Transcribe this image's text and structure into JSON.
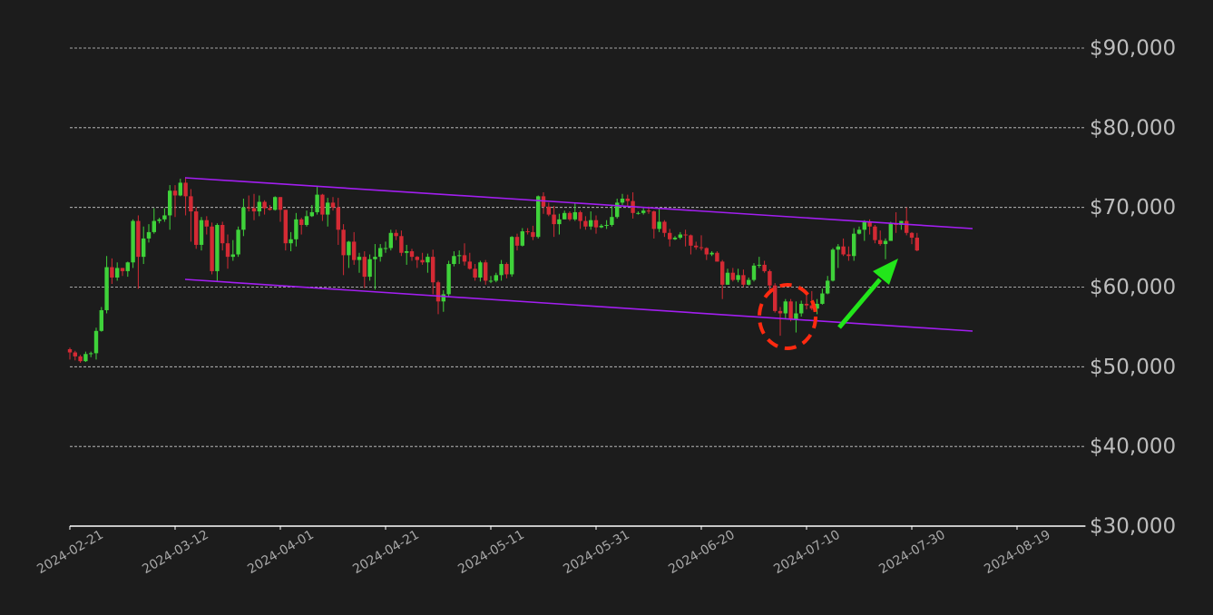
{
  "chart_data": {
    "type": "candlestick",
    "x": [
      "2024-02-21",
      "2024-02-22",
      "2024-02-23",
      "2024-02-24",
      "2024-02-25",
      "2024-02-26",
      "2024-02-27",
      "2024-02-28",
      "2024-02-29",
      "2024-03-01",
      "2024-03-02",
      "2024-03-03",
      "2024-03-04",
      "2024-03-05",
      "2024-03-06",
      "2024-03-07",
      "2024-03-08",
      "2024-03-09",
      "2024-03-10",
      "2024-03-11",
      "2024-03-12",
      "2024-03-13",
      "2024-03-14",
      "2024-03-15",
      "2024-03-16",
      "2024-03-17",
      "2024-03-18",
      "2024-03-19",
      "2024-03-20",
      "2024-03-21",
      "2024-03-22",
      "2024-03-23",
      "2024-03-24",
      "2024-03-25",
      "2024-03-26",
      "2024-03-27",
      "2024-03-28",
      "2024-03-29",
      "2024-03-30",
      "2024-03-31",
      "2024-04-01",
      "2024-04-02",
      "2024-04-03",
      "2024-04-04",
      "2024-04-05",
      "2024-04-06",
      "2024-04-07",
      "2024-04-08",
      "2024-04-09",
      "2024-04-10",
      "2024-04-11",
      "2024-04-12",
      "2024-04-13",
      "2024-04-14",
      "2024-04-15",
      "2024-04-16",
      "2024-04-17",
      "2024-04-18",
      "2024-04-19",
      "2024-04-20",
      "2024-04-21",
      "2024-04-22",
      "2024-04-23",
      "2024-04-24",
      "2024-04-25",
      "2024-04-26",
      "2024-04-27",
      "2024-04-28",
      "2024-04-29",
      "2024-04-30",
      "2024-05-01",
      "2024-05-02",
      "2024-05-03",
      "2024-05-04",
      "2024-05-05",
      "2024-05-06",
      "2024-05-07",
      "2024-05-08",
      "2024-05-09",
      "2024-05-10",
      "2024-05-11",
      "2024-05-12",
      "2024-05-13",
      "2024-05-14",
      "2024-05-15",
      "2024-05-16",
      "2024-05-17",
      "2024-05-18",
      "2024-05-19",
      "2024-05-20",
      "2024-05-21",
      "2024-05-22",
      "2024-05-23",
      "2024-05-24",
      "2024-05-25",
      "2024-05-26",
      "2024-05-27",
      "2024-05-28",
      "2024-05-29",
      "2024-05-30",
      "2024-05-31",
      "2024-06-01",
      "2024-06-02",
      "2024-06-03",
      "2024-06-04",
      "2024-06-05",
      "2024-06-06",
      "2024-06-07",
      "2024-06-08",
      "2024-06-09",
      "2024-06-10",
      "2024-06-11",
      "2024-06-12",
      "2024-06-13",
      "2024-06-14",
      "2024-06-15",
      "2024-06-16",
      "2024-06-17",
      "2024-06-18",
      "2024-06-19",
      "2024-06-20",
      "2024-06-21",
      "2024-06-22",
      "2024-06-23",
      "2024-06-24",
      "2024-06-25",
      "2024-06-26",
      "2024-06-27",
      "2024-06-28",
      "2024-06-29",
      "2024-06-30",
      "2024-07-01",
      "2024-07-02",
      "2024-07-03",
      "2024-07-04",
      "2024-07-05",
      "2024-07-06",
      "2024-07-07",
      "2024-07-08",
      "2024-07-09",
      "2024-07-10",
      "2024-07-11",
      "2024-07-12",
      "2024-07-13",
      "2024-07-14",
      "2024-07-15",
      "2024-07-16",
      "2024-07-17",
      "2024-07-18",
      "2024-07-19",
      "2024-07-20",
      "2024-07-21",
      "2024-07-22",
      "2024-07-23",
      "2024-07-24",
      "2024-07-25",
      "2024-07-26",
      "2024-07-27",
      "2024-07-28",
      "2024-07-29",
      "2024-07-30",
      "2024-07-31"
    ],
    "open": [
      52200,
      51800,
      51300,
      50700,
      51600,
      51700,
      54500,
      57100,
      62500,
      61200,
      62400,
      62000,
      63100,
      68300,
      63800,
      66100,
      66900,
      68300,
      68500,
      69000,
      72100,
      71500,
      73100,
      71400,
      69500,
      65300,
      68400,
      67600,
      62000,
      67800,
      65500,
      63800,
      64100,
      67200,
      70000,
      69900,
      69500,
      70700,
      69900,
      69700,
      71300,
      69700,
      65500,
      66000,
      68500,
      67800,
      68900,
      69400,
      71600,
      69100,
      70600,
      70000,
      67200,
      64000,
      65700,
      63400,
      63800,
      61300,
      63500,
      63800,
      64900,
      64900,
      66800,
      66400,
      64300,
      64500,
      63800,
      63400,
      63100,
      63800,
      60600,
      58200,
      59100,
      62900,
      63900,
      64000,
      63200,
      62300,
      61200,
      63100,
      60800,
      60800,
      61500,
      62900,
      61600,
      66300,
      65200,
      67000,
      66900,
      66300,
      71400,
      70100,
      69100,
      67900,
      68500,
      69300,
      68500,
      69400,
      68300,
      67600,
      68400,
      67500,
      67700,
      67800,
      68800,
      70600,
      71100,
      70800,
      69300,
      69300,
      69600,
      69500,
      67300,
      68200,
      66800,
      66000,
      66200,
      66600,
      66500,
      65200,
      65000,
      64900,
      64100,
      64300,
      63200,
      60300,
      61800,
      60900,
      61500,
      60300,
      60900,
      62700,
      62800,
      62000,
      60200,
      57000,
      56700,
      58200,
      55900,
      56700,
      57900,
      57700,
      57300,
      57900,
      59200,
      60800,
      64700,
      65100,
      64100,
      63900,
      66700,
      67200,
      68200,
      67600,
      65900,
      65400,
      65800,
      68000,
      67800,
      68300,
      66800,
      66200
    ],
    "high": [
      52400,
      52000,
      51500,
      51900,
      51900,
      54900,
      57500,
      63900,
      63600,
      63100,
      62400,
      63200,
      68500,
      69000,
      67600,
      67900,
      69900,
      68700,
      69900,
      72800,
      72800,
      73600,
      73800,
      72300,
      70000,
      68800,
      68900,
      68100,
      68000,
      68200,
      66600,
      65900,
      67600,
      71100,
      71500,
      71700,
      71500,
      70900,
      70300,
      71400,
      71300,
      69700,
      66900,
      69300,
      68700,
      69600,
      70300,
      72700,
      71700,
      71200,
      71300,
      71200,
      67900,
      65800,
      66900,
      64300,
      64500,
      64100,
      65400,
      65400,
      65700,
      67200,
      67200,
      67100,
      65300,
      64800,
      63900,
      64300,
      64200,
      64700,
      60800,
      59600,
      63300,
      64500,
      64600,
      65500,
      64300,
      62900,
      63300,
      63400,
      61400,
      61800,
      63400,
      63100,
      66400,
      66700,
      67400,
      67400,
      67700,
      71500,
      71900,
      70600,
      70200,
      69200,
      69600,
      69500,
      70600,
      69600,
      68900,
      69500,
      69000,
      67900,
      68400,
      70200,
      71100,
      71700,
      71600,
      71900,
      69500,
      69900,
      70100,
      69600,
      69900,
      68400,
      67300,
      66400,
      66900,
      67200,
      66600,
      65700,
      66500,
      65000,
      64500,
      64500,
      63400,
      62300,
      62400,
      62300,
      62200,
      61200,
      63000,
      63800,
      63300,
      62200,
      60500,
      57500,
      58500,
      58500,
      58200,
      58300,
      59400,
      59500,
      58500,
      59800,
      61400,
      64900,
      65400,
      66100,
      65100,
      67400,
      67600,
      68400,
      68500,
      67800,
      67100,
      66100,
      68200,
      69400,
      68300,
      70000,
      66900,
      66800
    ],
    "low": [
      50900,
      50800,
      50500,
      50600,
      51200,
      50900,
      54400,
      56700,
      60400,
      60800,
      61400,
      61300,
      62400,
      59800,
      62900,
      65600,
      66700,
      68000,
      68200,
      67200,
      68800,
      71400,
      69000,
      65700,
      64800,
      64600,
      66600,
      61600,
      60800,
      64600,
      62300,
      63300,
      63800,
      66400,
      69500,
      68400,
      68900,
      69100,
      69600,
      69600,
      68200,
      64600,
      64500,
      65100,
      66600,
      67600,
      68800,
      69100,
      68300,
      67600,
      69600,
      65300,
      61500,
      62400,
      62800,
      61800,
      59900,
      60800,
      59700,
      63200,
      64300,
      64600,
      65900,
      63900,
      62800,
      63300,
      62400,
      62800,
      61800,
      59100,
      56600,
      56900,
      58800,
      62600,
      62900,
      62700,
      62200,
      60800,
      60700,
      60300,
      60500,
      60600,
      60800,
      61100,
      61300,
      64600,
      65100,
      66600,
      65900,
      66100,
      69200,
      68900,
      66300,
      66600,
      68500,
      68300,
      68300,
      67300,
      67200,
      67200,
      66700,
      67400,
      67300,
      67600,
      68600,
      70300,
      70200,
      68600,
      69100,
      69100,
      69200,
      66100,
      66900,
      66300,
      65100,
      65900,
      66000,
      65100,
      64100,
      64700,
      64600,
      63400,
      63900,
      63200,
      58500,
      60300,
      60700,
      60600,
      60000,
      60200,
      60700,
      62400,
      61800,
      59400,
      56800,
      53900,
      56000,
      55700,
      54300,
      56300,
      57200,
      57100,
      56600,
      57800,
      59100,
      60700,
      62400,
      63900,
      63300,
      63300,
      66600,
      65800,
      66600,
      65500,
      65200,
      63500,
      65800,
      66800,
      67200,
      66500,
      65400,
      64500
    ],
    "close": [
      51800,
      51300,
      50700,
      51600,
      51700,
      54500,
      57100,
      62500,
      61200,
      62400,
      62000,
      63100,
      68300,
      63800,
      66100,
      66900,
      68300,
      68500,
      69000,
      72100,
      71500,
      73100,
      71400,
      69500,
      65300,
      68400,
      67600,
      62000,
      67800,
      65500,
      63800,
      64100,
      67200,
      70000,
      69900,
      69500,
      70700,
      69900,
      69700,
      71300,
      69700,
      65500,
      66000,
      68500,
      67800,
      68900,
      69400,
      71600,
      69100,
      70600,
      70000,
      67200,
      64000,
      65700,
      63400,
      63800,
      61300,
      63500,
      63800,
      64900,
      64900,
      66800,
      66400,
      64300,
      64500,
      63800,
      63400,
      63100,
      63800,
      60600,
      58200,
      59100,
      62900,
      63900,
      64000,
      63200,
      62300,
      61200,
      63100,
      60800,
      60800,
      61500,
      62900,
      61600,
      66300,
      65200,
      67000,
      66900,
      66300,
      71400,
      70100,
      69100,
      67900,
      68500,
      69300,
      68500,
      69400,
      68300,
      67600,
      68400,
      67500,
      67700,
      67800,
      68800,
      70600,
      71100,
      70800,
      69300,
      69300,
      69600,
      69500,
      67300,
      68200,
      66800,
      66000,
      66200,
      66600,
      66500,
      65200,
      65000,
      64900,
      64100,
      64300,
      63200,
      60300,
      61800,
      60900,
      61500,
      60300,
      60900,
      62700,
      62800,
      62000,
      60200,
      57000,
      56700,
      58200,
      55900,
      56700,
      57900,
      57700,
      57300,
      57900,
      59200,
      60800,
      64700,
      65100,
      64100,
      63900,
      66700,
      67200,
      68200,
      67600,
      65900,
      65400,
      65800,
      68000,
      67800,
      68300,
      66800,
      66200,
      64600
    ],
    "up_color": "#3fd23a",
    "down_color": "#d42a34",
    "xlim": [
      "2024-02-21",
      "2024-09-01"
    ],
    "xticks": [
      "2024-02-21",
      "2024-03-12",
      "2024-04-01",
      "2024-04-21",
      "2024-05-11",
      "2024-05-31",
      "2024-06-20",
      "2024-07-10",
      "2024-07-30",
      "2024-08-19"
    ],
    "ylim": [
      30000,
      90000
    ],
    "yticks": [
      {
        "value": 30000,
        "label": "$30,000"
      },
      {
        "value": 40000,
        "label": "$40,000"
      },
      {
        "value": 50000,
        "label": "$50,000"
      },
      {
        "value": 60000,
        "label": "$60,000"
      },
      {
        "value": 70000,
        "label": "$70,000"
      },
      {
        "value": 80000,
        "label": "$80,000"
      },
      {
        "value": 90000,
        "label": "$90,000"
      }
    ],
    "grid": true
  }
}
